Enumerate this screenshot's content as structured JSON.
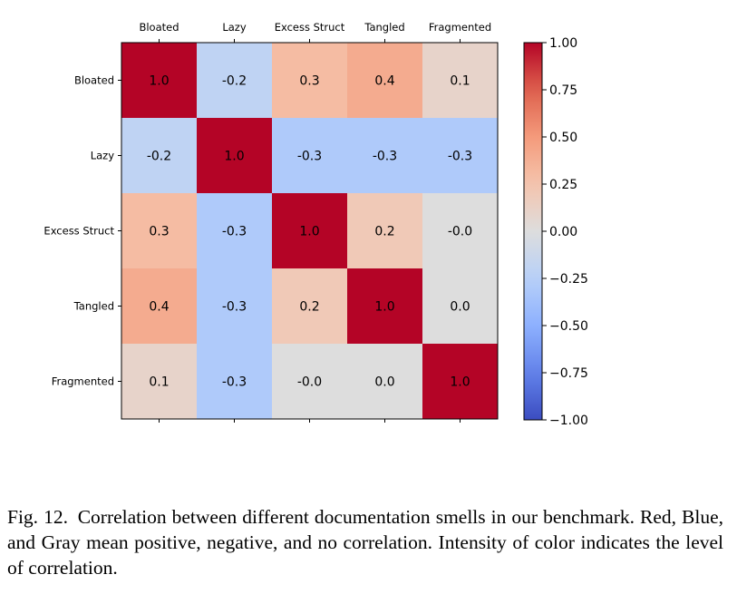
{
  "chart_data": {
    "type": "heatmap",
    "x_categories": [
      "Bloated",
      "Lazy",
      "Excess Struct",
      "Tangled",
      "Fragmented"
    ],
    "y_categories": [
      "Bloated",
      "Lazy",
      "Excess Struct",
      "Tangled",
      "Fragmented"
    ],
    "values": [
      [
        1.0,
        -0.2,
        0.3,
        0.4,
        0.1
      ],
      [
        -0.2,
        1.0,
        -0.3,
        -0.3,
        -0.3
      ],
      [
        0.3,
        -0.3,
        1.0,
        0.2,
        -0.0
      ],
      [
        0.4,
        -0.3,
        0.2,
        1.0,
        0.0
      ],
      [
        0.1,
        -0.3,
        -0.0,
        0.0,
        1.0
      ]
    ],
    "cell_labels": [
      [
        "1.0",
        "-0.2",
        "0.3",
        "0.4",
        "0.1"
      ],
      [
        "-0.2",
        "1.0",
        "-0.3",
        "-0.3",
        "-0.3"
      ],
      [
        "0.3",
        "-0.3",
        "1.0",
        "0.2",
        "-0.0"
      ],
      [
        "0.4",
        "-0.3",
        "0.2",
        "1.0",
        "0.0"
      ],
      [
        "0.1",
        "-0.3",
        "-0.0",
        "0.0",
        "1.0"
      ]
    ],
    "colormap": "coolwarm",
    "vmin": -1.0,
    "vmax": 1.0,
    "colorbar_ticks": [
      {
        "value": 1.0,
        "label": "1.00"
      },
      {
        "value": 0.75,
        "label": "0.75"
      },
      {
        "value": 0.5,
        "label": "0.50"
      },
      {
        "value": 0.25,
        "label": "0.25"
      },
      {
        "value": 0.0,
        "label": "0.00"
      },
      {
        "value": -0.25,
        "label": "−0.25"
      },
      {
        "value": -0.5,
        "label": "−0.50"
      },
      {
        "value": -0.75,
        "label": "−0.75"
      },
      {
        "value": -1.0,
        "label": "−1.00"
      }
    ],
    "x_axis_position": "top",
    "colorbar_position": "right",
    "grid": false
  },
  "caption": "Fig. 12. Correlation between different documentation smells in our benchmark. Red, Blue, and Gray mean positive, negative, and no correlation. Intensity of color indicates the level of correlation."
}
